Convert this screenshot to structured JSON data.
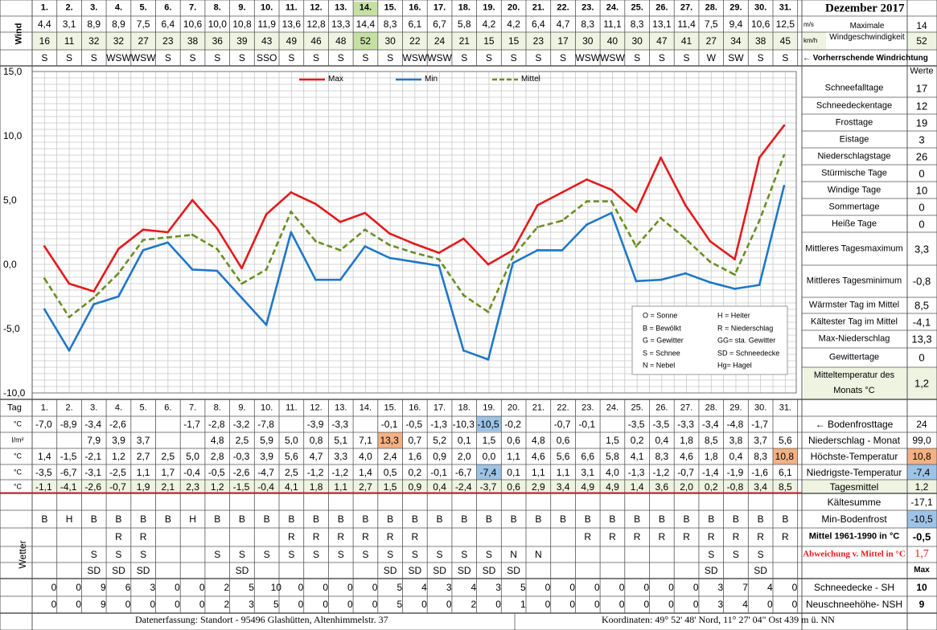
{
  "title": "Dezember 2017",
  "days": [
    "1.",
    "2.",
    "3.",
    "4.",
    "5.",
    "6.",
    "7.",
    "8.",
    "9.",
    "10.",
    "11.",
    "12.",
    "13.",
    "14.",
    "15.",
    "16.",
    "17.",
    "18.",
    "19.",
    "20.",
    "21.",
    "22.",
    "23.",
    "24.",
    "25.",
    "26.",
    "27.",
    "28.",
    "29.",
    "30.",
    "31."
  ],
  "wind": {
    "label": "Wind",
    "unit_ms": "m/s",
    "unit_kmh": "km/h",
    "max_label_line1": "Maximale",
    "max_label_line2": "Windgeschwindigkeit",
    "max_ms": "14",
    "max_kmh": "52",
    "ms": [
      "4,4",
      "3,1",
      "8,9",
      "8,9",
      "7,5",
      "6,4",
      "10,6",
      "10,0",
      "10,8",
      "11,9",
      "13,6",
      "12,8",
      "13,3",
      "14,4",
      "8,3",
      "6,1",
      "6,7",
      "5,8",
      "4,2",
      "4,2",
      "6,4",
      "4,7",
      "8,3",
      "11,1",
      "8,3",
      "13,1",
      "11,4",
      "7,5",
      "9,4",
      "10,6",
      "12,5"
    ],
    "kmh": [
      "16",
      "11",
      "32",
      "32",
      "27",
      "23",
      "38",
      "36",
      "39",
      "43",
      "49",
      "46",
      "48",
      "52",
      "30",
      "22",
      "24",
      "21",
      "15",
      "15",
      "23",
      "17",
      "30",
      "40",
      "30",
      "47",
      "41",
      "27",
      "34",
      "38",
      "45"
    ],
    "dir": [
      "S",
      "S",
      "S",
      "WSW",
      "WSW",
      "S",
      "S",
      "S",
      "S",
      "SSO",
      "S",
      "S",
      "S",
      "S",
      "S",
      "WSW",
      "WSW",
      "S",
      "S",
      "S",
      "S",
      "S",
      "WSW",
      "WSW",
      "S",
      "S",
      "S",
      "W",
      "SW",
      "S",
      "S"
    ],
    "dir_label": "← Vorherrschende Windrichtung"
  },
  "chart_data": {
    "type": "line",
    "x": [
      1,
      2,
      3,
      4,
      5,
      6,
      7,
      8,
      9,
      10,
      11,
      12,
      13,
      14,
      15,
      16,
      17,
      18,
      19,
      20,
      21,
      22,
      23,
      24,
      25,
      26,
      27,
      28,
      29,
      30,
      31
    ],
    "ylim": [
      -10,
      15
    ],
    "yticks": [
      "15,0",
      "10,0",
      "5,0",
      "0,0",
      "-5,0",
      "-10,0"
    ],
    "grid": true,
    "legend_position": "top",
    "series": [
      {
        "name": "Max",
        "color": "#e41a1c",
        "values": [
          1.4,
          -1.5,
          -2.1,
          1.2,
          2.7,
          2.5,
          5.0,
          2.8,
          -0.3,
          3.9,
          5.6,
          4.7,
          3.3,
          4.0,
          2.4,
          1.6,
          0.9,
          2.0,
          0.0,
          1.1,
          4.6,
          5.6,
          6.6,
          5.8,
          4.1,
          8.3,
          4.6,
          1.8,
          0.4,
          8.3,
          10.8
        ]
      },
      {
        "name": "Min",
        "color": "#1f78c8",
        "values": [
          -3.5,
          -6.7,
          -3.1,
          -2.5,
          1.1,
          1.7,
          -0.4,
          -0.5,
          -2.6,
          -4.7,
          2.5,
          -1.2,
          -1.2,
          1.4,
          0.5,
          0.2,
          -0.1,
          -6.7,
          -7.4,
          0.1,
          1.1,
          1.1,
          3.1,
          4.0,
          -1.3,
          -1.2,
          -0.7,
          -1.4,
          -1.9,
          -1.6,
          6.1
        ]
      },
      {
        "name": "Mittel",
        "color": "#6b8e23",
        "values": [
          -1.1,
          -4.1,
          -2.6,
          -0.7,
          1.9,
          2.1,
          2.3,
          1.2,
          -1.5,
          -0.4,
          4.1,
          1.8,
          1.1,
          2.7,
          1.5,
          0.9,
          0.4,
          -2.4,
          -3.7,
          0.6,
          2.9,
          3.4,
          4.9,
          4.9,
          1.4,
          3.6,
          2.0,
          0.2,
          -0.8,
          3.4,
          8.5
        ]
      }
    ]
  },
  "legend_box": [
    [
      "O = Sonne",
      "H = Heiter"
    ],
    [
      "B = Bewölkt",
      "R = Niederschlag"
    ],
    [
      "G = Gewitter",
      "GG= sta. Gewitter"
    ],
    [
      "S = Schnee",
      "SD = Schneedecke"
    ],
    [
      "N = Nebel",
      "Hg= Hagel"
    ]
  ],
  "stats_header": "Werte",
  "stats": [
    {
      "label": "Schneefalltage",
      "value": "17"
    },
    {
      "label": "Schneedeckentage",
      "value": "12"
    },
    {
      "label": "Frosttage",
      "value": "19"
    },
    {
      "label": "Eistage",
      "value": "3"
    },
    {
      "label": "Niederschlagstage",
      "value": "26"
    },
    {
      "label": "Stürmische Tage",
      "value": "0"
    },
    {
      "label": "Windige Tage",
      "value": "10"
    },
    {
      "label": "Sommertage",
      "value": "0"
    },
    {
      "label": "Heiße Tage",
      "value": "0"
    },
    {
      "label": "Mittleres Tagesmaximum",
      "value": "3,3"
    },
    {
      "label": "Mittleres Tagesminimum",
      "value": "-0,8"
    },
    {
      "label": "Wärmster Tag im Mittel",
      "value": "8,5"
    },
    {
      "label": "Kältester Tag im Mittel",
      "value": "-4,1"
    },
    {
      "label": "Max-Niederschlag",
      "value": "13,3"
    },
    {
      "label": "Gewittertage",
      "value": "0"
    },
    {
      "label": "Mitteltemperatur des Monats °C",
      "value": "1,2"
    }
  ],
  "table": {
    "tag_label": "Tag",
    "unit_c": "°C",
    "unit_lm2": "l/m²",
    "bodenfrost": [
      "-7,0",
      "-8,9",
      "-3,4",
      "-2,6",
      "",
      "",
      "-1,7",
      "-2,8",
      "-3,2",
      "-7,8",
      "",
      "-3,9",
      "-3,3",
      "",
      "-0,1",
      "-0,5",
      "-1,3",
      "-10,3",
      "-10,5",
      "-0,2",
      "",
      "-0,7",
      "-0,1",
      "",
      "-3,5",
      "-3,5",
      "-3,3",
      "-3,4",
      "-4,8",
      "-1,7",
      ""
    ],
    "bodenfrost_label": "← Bodenfrosttage",
    "bodenfrost_value": "24",
    "niederschlag": [
      "",
      "",
      "7,9",
      "3,9",
      "3,7",
      "",
      "",
      "4,8",
      "2,5",
      "5,9",
      "5,0",
      "0,8",
      "5,1",
      "7,1",
      "13,3",
      "0,7",
      "5,2",
      "0,1",
      "1,5",
      "0,6",
      "4,8",
      "0,6",
      "",
      "1,5",
      "0,2",
      "0,4",
      "1,8",
      "8,5",
      "3,8",
      "3,7",
      "5,6"
    ],
    "niederschlag_label": "Niederschlag - Monat",
    "niederschlag_value": "99,0",
    "hoechst": [
      "1,4",
      "-1,5",
      "-2,1",
      "1,2",
      "2,7",
      "2,5",
      "5,0",
      "2,8",
      "-0,3",
      "3,9",
      "5,6",
      "4,7",
      "3,3",
      "4,0",
      "2,4",
      "1,6",
      "0,9",
      "2,0",
      "0,0",
      "1,1",
      "4,6",
      "5,6",
      "6,6",
      "5,8",
      "4,1",
      "8,3",
      "4,6",
      "1,8",
      "0,4",
      "8,3",
      "10,8"
    ],
    "hoechst_label": "Höchste-Temperatur",
    "hoechst_value": "10,8",
    "niedrig": [
      "-3,5",
      "-6,7",
      "-3,1",
      "-2,5",
      "1,1",
      "1,7",
      "-0,4",
      "-0,5",
      "-2,6",
      "-4,7",
      "2,5",
      "-1,2",
      "-1,2",
      "1,4",
      "0,5",
      "0,2",
      "-0,1",
      "-6,7",
      "-7,4",
      "0,1",
      "1,1",
      "1,1",
      "3,1",
      "4,0",
      "-1,3",
      "-1,2",
      "-0,7",
      "-1,4",
      "-1,9",
      "-1,6",
      "6,1"
    ],
    "niedrig_label": "Niedrigste-Temperatur",
    "niedrig_value": "-7,4",
    "mittel": [
      "-1,1",
      "-4,1",
      "-2,6",
      "-0,7",
      "1,9",
      "2,1",
      "2,3",
      "1,2",
      "-1,5",
      "-0,4",
      "4,1",
      "1,8",
      "1,1",
      "2,7",
      "1,5",
      "0,9",
      "0,4",
      "-2,4",
      "-3,7",
      "0,6",
      "2,9",
      "3,4",
      "4,9",
      "4,9",
      "1,4",
      "3,6",
      "2,0",
      "0,2",
      "-0,8",
      "3,4",
      "8,5"
    ],
    "mittel_label": "Tagesmittel",
    "mittel_value": "1,2",
    "kaeltesumme_label": "Kältesumme",
    "kaeltesumme_value": "-17,1",
    "minboden_label": "Min-Bodenfrost",
    "minboden_value": "-10,5",
    "norm_label": "Mittel 1961-1990 in °C",
    "norm_value": "-0,5",
    "abw_label": "Abweichung v. Mittel in °C",
    "abw_value": "1,7",
    "max_label": "Max",
    "wetter_label": "Wetter",
    "wetter1": [
      "B",
      "H",
      "B",
      "B",
      "B",
      "B",
      "H",
      "B",
      "B",
      "B",
      "B",
      "B",
      "B",
      "B",
      "B",
      "B",
      "B",
      "B",
      "B",
      "B",
      "B",
      "B",
      "B",
      "B",
      "B",
      "B",
      "B",
      "B",
      "B",
      "B",
      "B"
    ],
    "wetter2": [
      "",
      "",
      "",
      "R",
      "R",
      "",
      "",
      "",
      "",
      "",
      "R",
      "R",
      "R",
      "R",
      "R",
      "R",
      "",
      "",
      "",
      "",
      "",
      "",
      "R",
      "R",
      "R",
      "R",
      "R",
      "R",
      "R",
      "R",
      "R"
    ],
    "wetter3": [
      "",
      "",
      "S",
      "S",
      "S",
      "",
      "",
      "S",
      "S",
      "S",
      "S",
      "S",
      "S",
      "S",
      "S",
      "S",
      "S",
      "S",
      "S",
      "N",
      "N",
      "",
      "",
      "",
      "",
      "",
      "",
      "S",
      "S",
      "S",
      ""
    ],
    "wetter4": [
      "",
      "",
      "SD",
      "SD",
      "SD",
      "",
      "",
      "",
      "SD",
      "",
      "",
      "",
      "",
      "",
      "SD",
      "SD",
      "SD",
      "SD",
      "SD",
      "SD",
      "",
      "",
      "",
      "",
      "",
      "",
      "",
      "SD",
      "",
      "SD",
      ""
    ],
    "sh": [
      "0",
      "0",
      "9",
      "6",
      "3",
      "0",
      "0",
      "2",
      "5",
      "10",
      "0",
      "0",
      "0",
      "0",
      "5",
      "4",
      "3",
      "4",
      "3",
      "5",
      "0",
      "0",
      "0",
      "0",
      "0",
      "0",
      "0",
      "3",
      "7",
      "4",
      "0"
    ],
    "sh_label": "Schneedecke -  SH",
    "sh_value": "10",
    "nsh": [
      "0",
      "0",
      "9",
      "0",
      "0",
      "0",
      "0",
      "2",
      "3",
      "5",
      "0",
      "0",
      "0",
      "0",
      "5",
      "0",
      "0",
      "2",
      "0",
      "1",
      "0",
      "0",
      "0",
      "0",
      "0",
      "0",
      "0",
      "3",
      "4",
      "0",
      "0"
    ],
    "nsh_label": "Neuschneehöhe- NSH",
    "nsh_value": "9"
  },
  "footer": {
    "left": "Datenerfassung:  Standort -  95496  Glashütten, Altenhimmelstr. 37",
    "right": "Koordinaten:  49° 52' 48' Nord,   11° 27' 04\" Ost   439 m ü. NN"
  },
  "colors": {
    "highlight_orange": "#f4b183",
    "highlight_blue": "#9dc3e6",
    "highlight_green": "#c6e0a4",
    "band_green": "#eef3e2"
  }
}
